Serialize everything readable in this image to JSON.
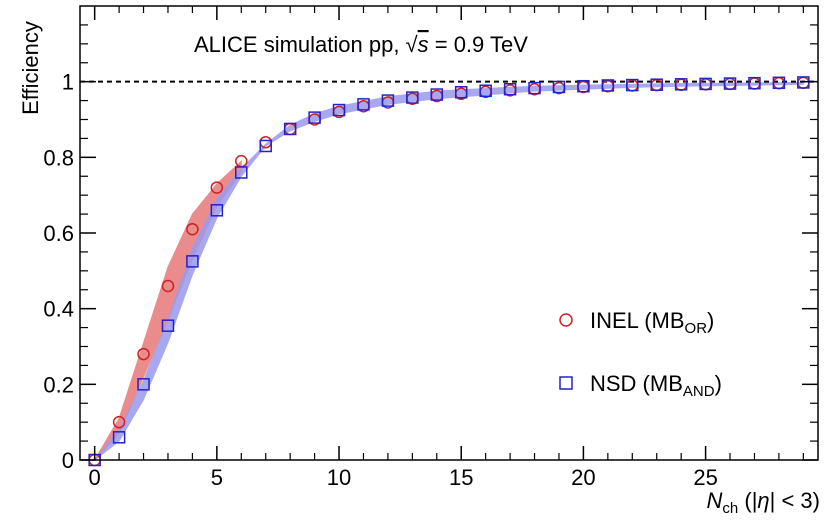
{
  "chart_data": {
    "type": "scatter",
    "annotation": {
      "prefix": "ALICE simulation pp, ",
      "sqrt_symbol": "√",
      "variable": "s",
      "suffix": " = 0.9 TeV"
    },
    "xlabel": {
      "main": "N",
      "sub": "ch",
      "range": " (|",
      "eta": "η",
      "range_end": "| < 3)"
    },
    "ylabel": "Efficiency",
    "xlim": [
      -0.6,
      29.6
    ],
    "ylim": [
      0,
      1.2
    ],
    "x_ticks": [
      0,
      5,
      10,
      15,
      20,
      25
    ],
    "x_tick_labels": [
      "0",
      "5",
      "10",
      "15",
      "20",
      "25"
    ],
    "y_ticks": [
      0,
      0.2,
      0.4,
      0.6,
      0.8,
      1
    ],
    "y_tick_labels": [
      "0",
      "0.2",
      "0.4",
      "0.6",
      "0.8",
      "1"
    ],
    "reference_line": 1,
    "series": [
      {
        "name": "INEL",
        "legend_label": "INEL (MB",
        "legend_sub": "OR",
        "legend_end": ")",
        "marker": "open-circle",
        "color": "#cc2222",
        "band_color": "#e87878",
        "x": [
          0,
          1,
          2,
          3,
          4,
          5,
          6,
          7,
          8,
          9,
          10,
          11,
          12,
          13,
          14,
          15,
          16,
          17,
          18,
          19,
          20,
          21,
          22,
          23,
          24,
          25,
          26,
          27,
          28,
          29
        ],
        "y": [
          0.0,
          0.1,
          0.28,
          0.46,
          0.61,
          0.72,
          0.79,
          0.84,
          0.875,
          0.9,
          0.92,
          0.935,
          0.945,
          0.955,
          0.962,
          0.968,
          0.973,
          0.977,
          0.98,
          0.983,
          0.986,
          0.988,
          0.99,
          0.991,
          0.992,
          0.993,
          0.994,
          0.995,
          0.996,
          0.997
        ],
        "band_x": [
          0,
          1,
          2,
          3,
          4,
          5,
          6
        ],
        "band_low": [
          0.0,
          0.07,
          0.22,
          0.37,
          0.53,
          0.67,
          0.76
        ],
        "band_high": [
          0.0,
          0.11,
          0.31,
          0.51,
          0.65,
          0.73,
          0.79
        ]
      },
      {
        "name": "NSD",
        "legend_label": "NSD (MB",
        "legend_sub": "AND",
        "legend_end": ")",
        "marker": "open-square",
        "color": "#2222cc",
        "band_color": "#9a9aee",
        "x": [
          0,
          1,
          2,
          3,
          4,
          5,
          6,
          7,
          8,
          9,
          10,
          11,
          12,
          13,
          14,
          15,
          16,
          17,
          18,
          19,
          20,
          21,
          22,
          23,
          24,
          25,
          26,
          27,
          28,
          29
        ],
        "y": [
          0.0,
          0.06,
          0.2,
          0.355,
          0.525,
          0.66,
          0.76,
          0.83,
          0.875,
          0.905,
          0.925,
          0.94,
          0.95,
          0.958,
          0.966,
          0.972,
          0.976,
          0.98,
          0.983,
          0.986,
          0.988,
          0.99,
          0.991,
          0.992,
          0.993,
          0.994,
          0.995,
          0.996,
          0.997,
          0.998
        ],
        "band_x": [
          0,
          1,
          2,
          3,
          4,
          5,
          6,
          7,
          8,
          9,
          10,
          12,
          14,
          16,
          18,
          20,
          22,
          24,
          26,
          28,
          29
        ],
        "band_low": [
          0.0,
          0.05,
          0.16,
          0.31,
          0.49,
          0.64,
          0.75,
          0.83,
          0.87,
          0.895,
          0.915,
          0.94,
          0.955,
          0.965,
          0.975,
          0.98,
          0.985,
          0.988,
          0.99,
          0.992,
          0.993
        ],
        "band_high": [
          0.0,
          0.08,
          0.21,
          0.37,
          0.56,
          0.69,
          0.77,
          0.835,
          0.885,
          0.915,
          0.935,
          0.96,
          0.975,
          0.982,
          0.988,
          0.991,
          0.993,
          0.995,
          0.996,
          0.997,
          0.998
        ]
      }
    ]
  }
}
